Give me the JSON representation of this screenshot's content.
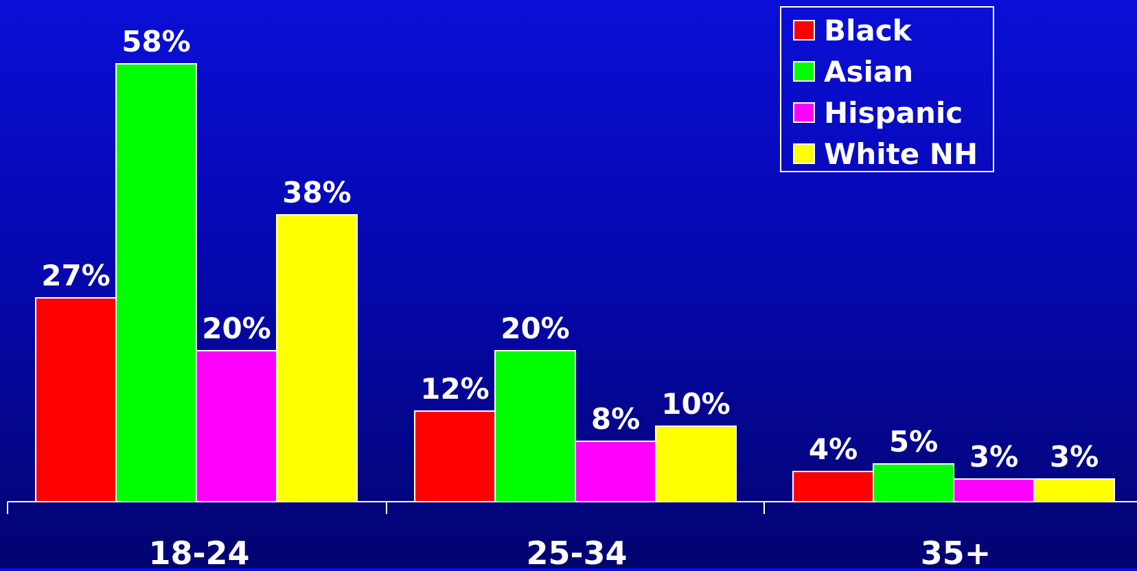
{
  "chart_data": {
    "type": "bar",
    "title": "",
    "xlabel": "",
    "ylabel": "",
    "categories": [
      "18-24",
      "25-34",
      "35+"
    ],
    "series": [
      {
        "name": "Black",
        "values": [
          27,
          12,
          4
        ],
        "labels": [
          "27%",
          "12%",
          "4%"
        ],
        "color": "#ff0000"
      },
      {
        "name": "Asian",
        "values": [
          58,
          20,
          5
        ],
        "labels": [
          "58%",
          "20%",
          "5%"
        ],
        "color": "#00ff00"
      },
      {
        "name": "Hispanic",
        "values": [
          20,
          8,
          3
        ],
        "labels": [
          "20%",
          "8%",
          "3%"
        ],
        "color": "#ff00ff"
      },
      {
        "name": "White NH",
        "values": [
          38,
          10,
          3
        ],
        "labels": [
          "38%",
          "10%",
          "3%"
        ],
        "color": "#ffff00"
      }
    ],
    "ylim": [
      0,
      60
    ],
    "grid": false,
    "legend_position": "top-right",
    "colors": {
      "background_top": "#0b0fd6",
      "background_bottom": "#020470",
      "axis": "#ffffff",
      "text": "#ffffff",
      "bar_outline": "#ffffff"
    }
  }
}
